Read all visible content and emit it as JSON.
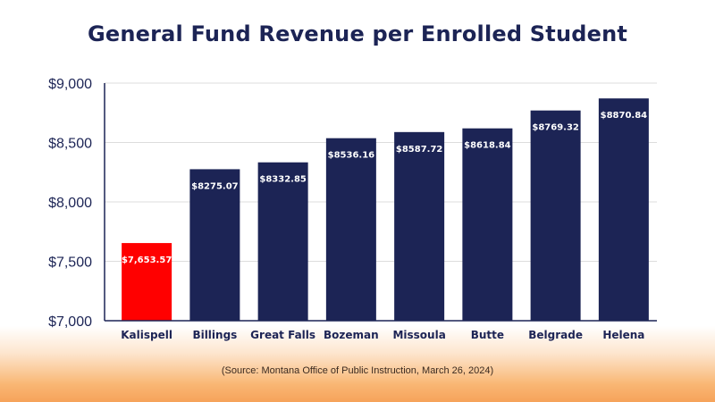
{
  "chart_data": {
    "type": "bar",
    "title": "General Fund Revenue per Enrolled Student",
    "xlabel": "",
    "ylabel": "",
    "ylim": [
      7000,
      9000
    ],
    "yticks": [
      7000,
      7500,
      8000,
      8500,
      9000
    ],
    "ytick_labels": [
      "$7,000",
      "$7,500",
      "$8,000",
      "$8,500",
      "$9,000"
    ],
    "grid": true,
    "categories": [
      "Kalispell",
      "Billings",
      "Great Falls",
      "Bozeman",
      "Missoula",
      "Butte",
      "Belgrade",
      "Helena"
    ],
    "values": [
      7653.57,
      8275.07,
      8332.85,
      8536.16,
      8587.72,
      8618.84,
      8769.32,
      8870.84
    ],
    "data_labels": [
      "$7,653.57",
      "$8275.07",
      "$8332.85",
      "$8536.16",
      "$8587.72",
      "$8618.84",
      "$8769.32",
      "$8870.84"
    ],
    "colors": [
      "#ff0000",
      "#1c2455",
      "#1c2455",
      "#1c2455",
      "#1c2455",
      "#1c2455",
      "#1c2455",
      "#1c2455"
    ],
    "highlight_color": "#ff0000",
    "bar_color": "#1c2455"
  },
  "source_note": "(Source: Montana Office of Public Instruction, March 26, 2024)"
}
